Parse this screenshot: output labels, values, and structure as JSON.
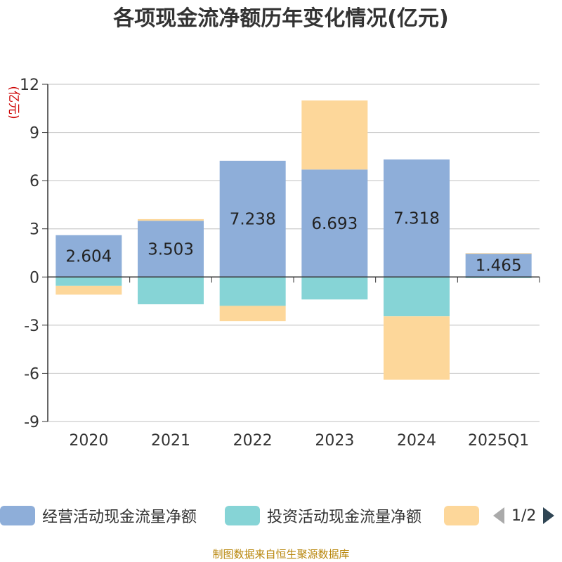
{
  "title": "各项现金流净额历年变化情况(亿元)",
  "source_text": "制图数据来自恒生聚源数据库",
  "pager": {
    "text": "1/2",
    "prev_icon": "triangle-left-icon",
    "next_icon": "triangle-right-icon"
  },
  "colors": {
    "operating": "#8eaed9",
    "investing": "#86d4d6",
    "financing": "#fdd79a",
    "axis": "#333333",
    "grid": "#cccccc",
    "unit": "#cc0000",
    "source": "#b8860b",
    "pager_inactive": "#aaaaaa",
    "pager_active": "#2f4554"
  },
  "chart_data": {
    "type": "bar",
    "stacked": true,
    "title": "各项现金流净额历年变化情况(亿元)",
    "ylabel": "(亿元)",
    "xlabel": "",
    "categories": [
      "2020",
      "2021",
      "2022",
      "2023",
      "2024",
      "2025Q1"
    ],
    "ylim": [
      -9,
      12
    ],
    "yticks": [
      12,
      9,
      6,
      3,
      0,
      -3,
      -6,
      -9
    ],
    "grid": true,
    "legend_position": "bottom",
    "series": [
      {
        "name": "经营活动现金流量净额",
        "values": [
          2.604,
          3.503,
          7.238,
          6.693,
          7.318,
          1.465
        ],
        "show_labels": true
      },
      {
        "name": "投资活动现金流量净额",
        "values": [
          -0.55,
          -1.7,
          -1.8,
          -1.4,
          -2.45,
          -0.07
        ],
        "show_labels": false
      },
      {
        "name": "",
        "values": [
          -0.55,
          0.1,
          -0.95,
          4.3,
          -3.95,
          0.02
        ],
        "show_labels": false
      }
    ]
  }
}
